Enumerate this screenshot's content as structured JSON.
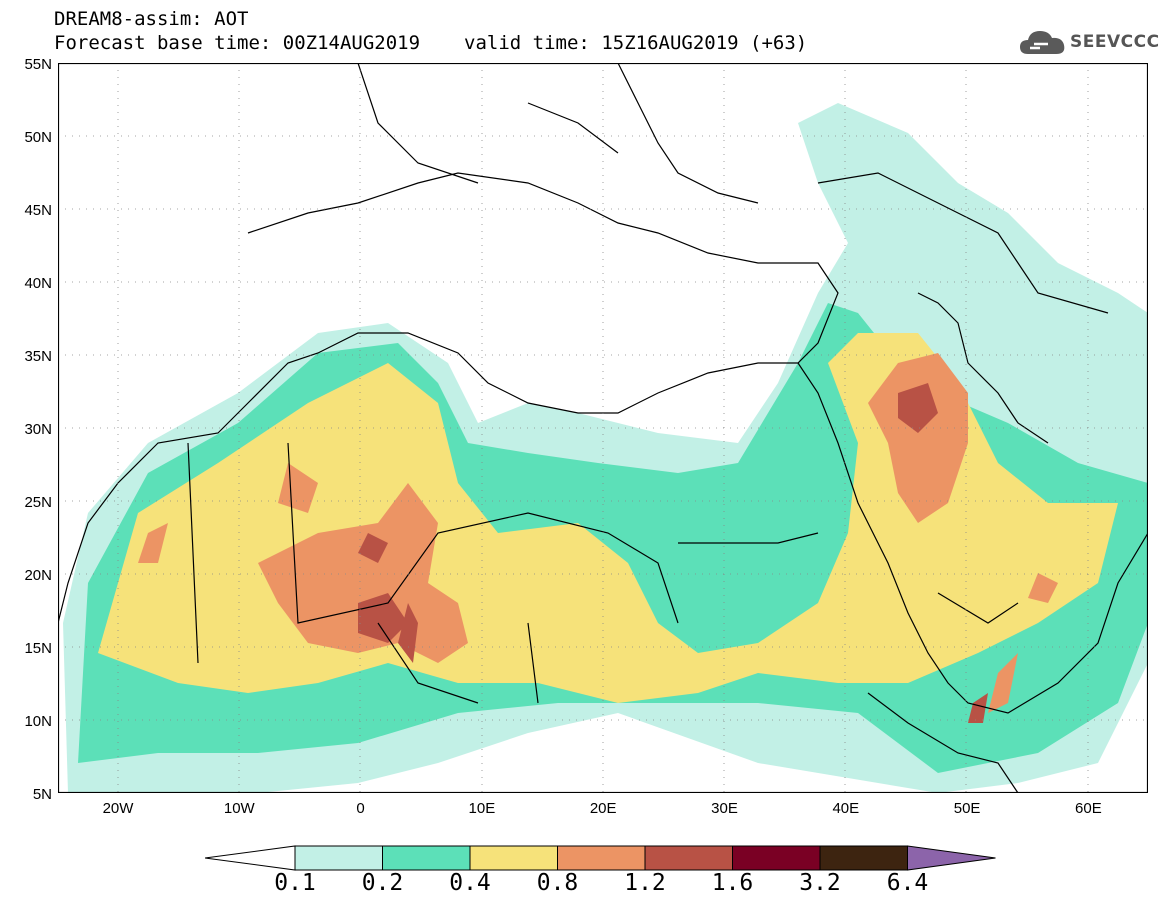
{
  "title": {
    "line1": "DREAM8-assim: AOT",
    "base": "Forecast base time: 00Z14AUG2019",
    "valid": "valid time: 15Z16AUG2019 (+63)"
  },
  "logo": {
    "text": "SEEVCCC",
    "icon": "cloud-icon"
  },
  "axes": {
    "lat_labels": [
      "55N",
      "50N",
      "45N",
      "40N",
      "35N",
      "30N",
      "25N",
      "20N",
      "15N",
      "10N",
      "5N"
    ],
    "lon_labels": [
      "20W",
      "10W",
      "0",
      "10E",
      "20E",
      "30E",
      "40E",
      "50E",
      "60E"
    ],
    "lat_range": [
      5,
      55
    ],
    "lon_range": [
      -25,
      65
    ]
  },
  "colorbar": {
    "levels": [
      "0.1",
      "0.2",
      "0.4",
      "0.8",
      "1.2",
      "1.6",
      "3.2",
      "6.4"
    ],
    "colors": [
      "#ffffff",
      "#c2f0e6",
      "#5ce0b8",
      "#f6e27a",
      "#ec9464",
      "#b85245",
      "#7a0024",
      "#3d2410",
      "#8c64aa"
    ]
  }
}
